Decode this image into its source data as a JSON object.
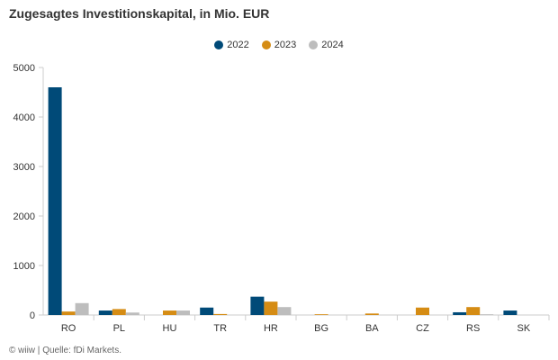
{
  "chart_data": {
    "type": "bar",
    "title": "Zugesagtes Investitionskapital, in Mio. EUR",
    "categories": [
      "RO",
      "PL",
      "HU",
      "TR",
      "HR",
      "BG",
      "BA",
      "CZ",
      "RS",
      "SK"
    ],
    "series": [
      {
        "name": "2022",
        "color": "#004a78",
        "values": [
          4600,
          90,
          0,
          150,
          370,
          0,
          0,
          0,
          55,
          90
        ]
      },
      {
        "name": "2023",
        "color": "#d58c14",
        "values": [
          70,
          120,
          90,
          20,
          270,
          15,
          30,
          150,
          160,
          0
        ]
      },
      {
        "name": "2024",
        "color": "#bdbdbd",
        "values": [
          240,
          50,
          90,
          0,
          160,
          0,
          0,
          0,
          15,
          0
        ]
      }
    ],
    "ylim": [
      0,
      5000
    ],
    "yticks": [
      0,
      1000,
      2000,
      3000,
      4000,
      5000
    ],
    "grid": false,
    "legend_position": "top-center"
  },
  "footer": "© wiiw | Quelle: fDi Markets."
}
